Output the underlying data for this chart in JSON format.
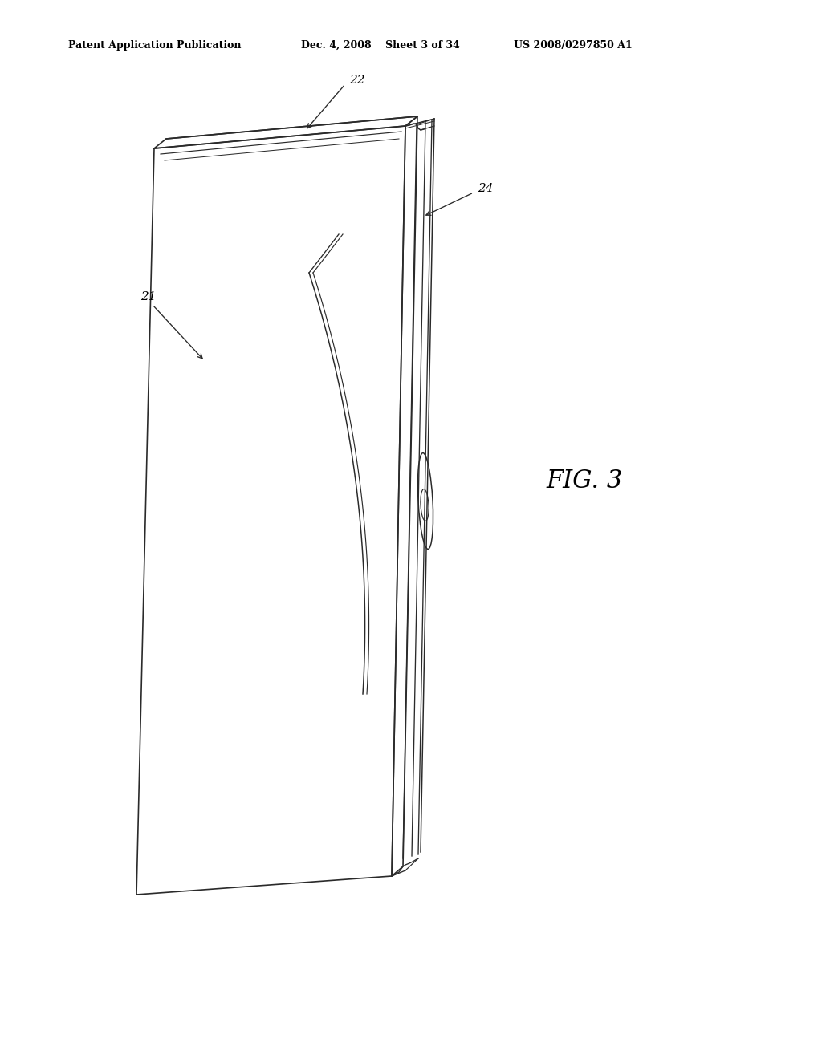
{
  "background_color": "#ffffff",
  "line_color": "#2a2a2a",
  "line_width": 1.2,
  "header_text": "Patent Application Publication",
  "header_date": "Dec. 4, 2008",
  "header_sheet": "Sheet 3 of 34",
  "header_patent": "US 2008/0297850 A1",
  "fig_label": "FIG. 3",
  "label_21": "21",
  "label_22": "22",
  "label_24": "24"
}
